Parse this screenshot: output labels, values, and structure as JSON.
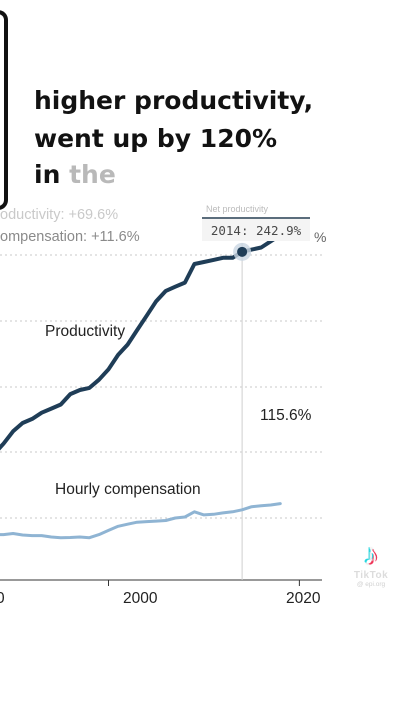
{
  "caption": {
    "line1": "higher productivity,",
    "line2": "went up by 120%",
    "line3_word1": "in",
    "line3_word2": "the"
  },
  "stats": {
    "productivity_faded": "oductivity: +69.6%",
    "compensation": "ompensation: +11.6%",
    "edge_percent": "%"
  },
  "tooltip": {
    "heading": "Net productivity",
    "value": "2014: 242.9%"
  },
  "chart_data": {
    "type": "line",
    "x_ticks": [
      "0",
      "2000",
      "2020"
    ],
    "xlim": [
      1988,
      2023
    ],
    "ylim": [
      84,
      268
    ],
    "highlight_year": 2014,
    "series": [
      {
        "name": "Productivity",
        "color": "#1f3d57",
        "x": [
          1988,
          1989,
          1990,
          1991,
          1992,
          1993,
          1994,
          1995,
          1996,
          1997,
          1998,
          1999,
          2000,
          2001,
          2002,
          2003,
          2004,
          2005,
          2006,
          2007,
          2008,
          2009,
          2010,
          2011,
          2012,
          2013,
          2014,
          2015,
          2016,
          2017,
          2018
        ],
        "y": [
          145,
          150,
          156,
          160,
          162,
          165,
          167,
          169,
          174,
          176,
          177,
          181,
          186,
          193,
          198,
          205,
          212,
          219,
          224,
          226,
          228,
          237,
          238,
          239,
          240,
          240,
          242.9,
          244,
          245,
          248,
          251
        ]
      },
      {
        "name": "Hourly compensation",
        "color": "#8fb4d3",
        "x": [
          1988,
          1989,
          1990,
          1991,
          1992,
          1993,
          1994,
          1995,
          1996,
          1997,
          1998,
          1999,
          2000,
          2001,
          2002,
          2003,
          2004,
          2005,
          2006,
          2007,
          2008,
          2009,
          2010,
          2011,
          2012,
          2013,
          2014,
          2015,
          2016,
          2017,
          2018
        ],
        "y": [
          106,
          106,
          106.5,
          105.8,
          105.5,
          105.5,
          104.8,
          104.5,
          104.6,
          104.8,
          104.5,
          106,
          108,
          110,
          111,
          112,
          112.3,
          112.5,
          112.8,
          114,
          114.5,
          117,
          115.5,
          115.8,
          116.5,
          117,
          118,
          119.5,
          120,
          120.3,
          121
        ]
      }
    ],
    "labels": {
      "productivity": "Productivity",
      "compensation": "Hourly compensation",
      "compensation_end": "115.6%"
    }
  },
  "watermark": {
    "name": "TikTok",
    "handle": "@ epi.org"
  }
}
